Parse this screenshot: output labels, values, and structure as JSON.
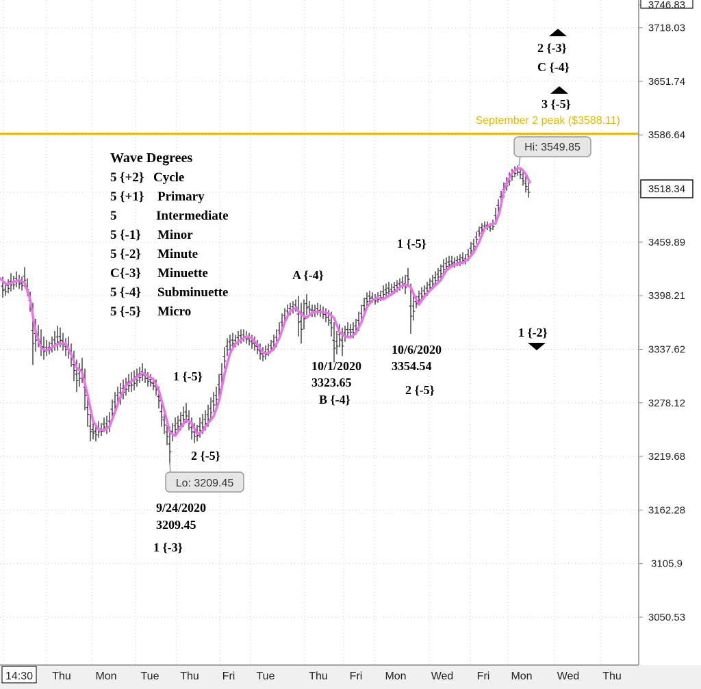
{
  "chart_data": {
    "type": "line",
    "title": "",
    "ylabel": "",
    "ylim": [
      3020,
      3747
    ],
    "grid": true,
    "y_ticks": [
      "3746.83",
      "3718.03",
      "3651.74",
      "3586.64",
      "3518.34",
      "3459.89",
      "3398.21",
      "3337.62",
      "3278.12",
      "3219.68",
      "3162.28",
      "3105.9",
      "3050.53"
    ],
    "current_price": "3518.34",
    "x_labels": [
      "14:30",
      "Thu",
      "Mon",
      "Tue",
      "Thu",
      "Fri",
      "Tue",
      "Thu",
      "Fri",
      "Mon",
      "Wed",
      "Fri",
      "Mon",
      "Wed",
      "Thu"
    ],
    "moving_average": [
      [
        0,
        3418
      ],
      [
        10,
        3411
      ],
      [
        20,
        3414
      ],
      [
        28,
        3416
      ],
      [
        36,
        3413
      ],
      [
        44,
        3394
      ],
      [
        52,
        3358
      ],
      [
        60,
        3339
      ],
      [
        68,
        3336
      ],
      [
        76,
        3340
      ],
      [
        86,
        3344
      ],
      [
        96,
        3344
      ],
      [
        104,
        3332
      ],
      [
        112,
        3317
      ],
      [
        120,
        3312
      ],
      [
        128,
        3287
      ],
      [
        136,
        3258
      ],
      [
        144,
        3249
      ],
      [
        152,
        3248
      ],
      [
        160,
        3252
      ],
      [
        168,
        3268
      ],
      [
        176,
        3285
      ],
      [
        184,
        3297
      ],
      [
        192,
        3302
      ],
      [
        200,
        3306
      ],
      [
        208,
        3311
      ],
      [
        216,
        3308
      ],
      [
        224,
        3304
      ],
      [
        232,
        3292
      ],
      [
        240,
        3270
      ],
      [
        248,
        3246
      ],
      [
        256,
        3242
      ],
      [
        264,
        3251
      ],
      [
        272,
        3259
      ],
      [
        280,
        3256
      ],
      [
        288,
        3244
      ],
      [
        296,
        3247
      ],
      [
        304,
        3256
      ],
      [
        312,
        3263
      ],
      [
        320,
        3280
      ],
      [
        328,
        3310
      ],
      [
        336,
        3333
      ],
      [
        344,
        3344
      ],
      [
        352,
        3348
      ],
      [
        360,
        3352
      ],
      [
        368,
        3350
      ],
      [
        376,
        3343
      ],
      [
        384,
        3334
      ],
      [
        392,
        3333
      ],
      [
        400,
        3338
      ],
      [
        408,
        3350
      ],
      [
        416,
        3368
      ],
      [
        424,
        3381
      ],
      [
        432,
        3384
      ],
      [
        440,
        3377
      ],
      [
        448,
        3373
      ],
      [
        456,
        3379
      ],
      [
        464,
        3380
      ],
      [
        472,
        3380
      ],
      [
        480,
        3378
      ],
      [
        488,
        3373
      ],
      [
        496,
        3357
      ],
      [
        504,
        3352
      ],
      [
        512,
        3351
      ],
      [
        520,
        3356
      ],
      [
        528,
        3368
      ],
      [
        536,
        3385
      ],
      [
        544,
        3393
      ],
      [
        552,
        3396
      ],
      [
        560,
        3394
      ],
      [
        568,
        3398
      ],
      [
        576,
        3402
      ],
      [
        584,
        3408
      ],
      [
        592,
        3411
      ],
      [
        600,
        3408
      ],
      [
        606,
        3397
      ],
      [
        612,
        3388
      ],
      [
        620,
        3397
      ],
      [
        628,
        3404
      ],
      [
        636,
        3410
      ],
      [
        644,
        3416
      ],
      [
        652,
        3427
      ],
      [
        660,
        3432
      ],
      [
        668,
        3435
      ],
      [
        676,
        3436
      ],
      [
        684,
        3440
      ],
      [
        692,
        3448
      ],
      [
        700,
        3460
      ],
      [
        708,
        3476
      ],
      [
        716,
        3480
      ],
      [
        724,
        3482
      ],
      [
        730,
        3496
      ],
      [
        736,
        3520
      ],
      [
        742,
        3532
      ],
      [
        748,
        3541
      ],
      [
        756,
        3547
      ],
      [
        762,
        3546
      ],
      [
        768,
        3540
      ],
      [
        774,
        3530
      ]
    ],
    "price_bars": [
      [
        4,
        3420,
        3396
      ],
      [
        8,
        3412,
        3398
      ],
      [
        12,
        3417,
        3401
      ],
      [
        16,
        3424,
        3403
      ],
      [
        20,
        3421,
        3405
      ],
      [
        24,
        3426,
        3408
      ],
      [
        28,
        3422,
        3406
      ],
      [
        32,
        3420,
        3404
      ],
      [
        36,
        3431,
        3408
      ],
      [
        40,
        3418,
        3398
      ],
      [
        44,
        3403,
        3380
      ],
      [
        48,
        3390,
        3320
      ],
      [
        52,
        3372,
        3335
      ],
      [
        56,
        3365,
        3340
      ],
      [
        60,
        3360,
        3330
      ],
      [
        64,
        3352,
        3326
      ],
      [
        68,
        3348,
        3330
      ],
      [
        72,
        3346,
        3332
      ],
      [
        76,
        3352,
        3334
      ],
      [
        80,
        3358,
        3336
      ],
      [
        84,
        3364,
        3336
      ],
      [
        88,
        3362,
        3340
      ],
      [
        92,
        3356,
        3336
      ],
      [
        96,
        3350,
        3330
      ],
      [
        100,
        3352,
        3327
      ],
      [
        104,
        3344,
        3318
      ],
      [
        108,
        3336,
        3302
      ],
      [
        112,
        3326,
        3290
      ],
      [
        116,
        3322,
        3296
      ],
      [
        120,
        3328,
        3300
      ],
      [
        124,
        3316,
        3270
      ],
      [
        128,
        3290,
        3252
      ],
      [
        132,
        3266,
        3236
      ],
      [
        136,
        3258,
        3238
      ],
      [
        140,
        3256,
        3236
      ],
      [
        144,
        3258,
        3240
      ],
      [
        148,
        3256,
        3242
      ],
      [
        152,
        3262,
        3246
      ],
      [
        156,
        3264,
        3244
      ],
      [
        160,
        3268,
        3246
      ],
      [
        164,
        3282,
        3258
      ],
      [
        168,
        3290,
        3266
      ],
      [
        172,
        3296,
        3274
      ],
      [
        176,
        3300,
        3276
      ],
      [
        180,
        3304,
        3282
      ],
      [
        184,
        3306,
        3286
      ],
      [
        188,
        3310,
        3290
      ],
      [
        192,
        3312,
        3290
      ],
      [
        196,
        3314,
        3292
      ],
      [
        200,
        3316,
        3296
      ],
      [
        204,
        3318,
        3300
      ],
      [
        208,
        3322,
        3302
      ],
      [
        212,
        3316,
        3300
      ],
      [
        216,
        3312,
        3296
      ],
      [
        220,
        3310,
        3296
      ],
      [
        224,
        3306,
        3292
      ],
      [
        228,
        3304,
        3286
      ],
      [
        232,
        3296,
        3272
      ],
      [
        236,
        3282,
        3252
      ],
      [
        240,
        3272,
        3244
      ],
      [
        244,
        3258,
        3232
      ],
      [
        248,
        3252,
        3210
      ],
      [
        252,
        3256,
        3236
      ],
      [
        256,
        3262,
        3242
      ],
      [
        260,
        3264,
        3246
      ],
      [
        264,
        3268,
        3248
      ],
      [
        268,
        3274,
        3252
      ],
      [
        272,
        3278,
        3256
      ],
      [
        276,
        3270,
        3248
      ],
      [
        280,
        3262,
        3238
      ],
      [
        284,
        3256,
        3234
      ],
      [
        288,
        3254,
        3236
      ],
      [
        292,
        3262,
        3240
      ],
      [
        296,
        3266,
        3244
      ],
      [
        300,
        3270,
        3248
      ],
      [
        304,
        3276,
        3252
      ],
      [
        308,
        3284,
        3258
      ],
      [
        312,
        3290,
        3268
      ],
      [
        316,
        3296,
        3274
      ],
      [
        320,
        3310,
        3284
      ],
      [
        324,
        3322,
        3294
      ],
      [
        328,
        3340,
        3316
      ],
      [
        332,
        3350,
        3330
      ],
      [
        336,
        3354,
        3336
      ],
      [
        340,
        3356,
        3338
      ],
      [
        344,
        3354,
        3340
      ],
      [
        348,
        3358,
        3342
      ],
      [
        352,
        3360,
        3344
      ],
      [
        356,
        3360,
        3346
      ],
      [
        360,
        3358,
        3344
      ],
      [
        364,
        3356,
        3342
      ],
      [
        368,
        3354,
        3338
      ],
      [
        372,
        3352,
        3336
      ],
      [
        376,
        3348,
        3332
      ],
      [
        380,
        3344,
        3326
      ],
      [
        384,
        3340,
        3324
      ],
      [
        388,
        3342,
        3326
      ],
      [
        392,
        3344,
        3330
      ],
      [
        396,
        3348,
        3334
      ],
      [
        400,
        3354,
        3336
      ],
      [
        404,
        3360,
        3340
      ],
      [
        408,
        3368,
        3348
      ],
      [
        412,
        3378,
        3356
      ],
      [
        416,
        3384,
        3366
      ],
      [
        420,
        3388,
        3372
      ],
      [
        424,
        3390,
        3376
      ],
      [
        428,
        3392,
        3378
      ],
      [
        432,
        3394,
        3380
      ],
      [
        436,
        3398,
        3352
      ],
      [
        440,
        3390,
        3344
      ],
      [
        444,
        3394,
        3360
      ],
      [
        448,
        3400,
        3376
      ],
      [
        452,
        3392,
        3378
      ],
      [
        456,
        3388,
        3374
      ],
      [
        460,
        3388,
        3374
      ],
      [
        464,
        3390,
        3376
      ],
      [
        468,
        3388,
        3374
      ],
      [
        472,
        3386,
        3372
      ],
      [
        476,
        3384,
        3368
      ],
      [
        480,
        3382,
        3364
      ],
      [
        484,
        3380,
        3352
      ],
      [
        488,
        3368,
        3323
      ],
      [
        492,
        3358,
        3332
      ],
      [
        496,
        3366,
        3340
      ],
      [
        500,
        3362,
        3330
      ],
      [
        504,
        3364,
        3346
      ],
      [
        508,
        3368,
        3350
      ],
      [
        512,
        3366,
        3352
      ],
      [
        516,
        3368,
        3350
      ],
      [
        520,
        3372,
        3354
      ],
      [
        524,
        3380,
        3358
      ],
      [
        528,
        3388,
        3366
      ],
      [
        532,
        3396,
        3376
      ],
      [
        536,
        3402,
        3386
      ],
      [
        540,
        3404,
        3390
      ],
      [
        544,
        3402,
        3390
      ],
      [
        548,
        3400,
        3388
      ],
      [
        552,
        3402,
        3390
      ],
      [
        556,
        3404,
        3392
      ],
      [
        560,
        3410,
        3394
      ],
      [
        564,
        3412,
        3396
      ],
      [
        568,
        3414,
        3398
      ],
      [
        572,
        3412,
        3398
      ],
      [
        576,
        3414,
        3400
      ],
      [
        580,
        3416,
        3402
      ],
      [
        584,
        3418,
        3404
      ],
      [
        588,
        3420,
        3406
      ],
      [
        592,
        3422,
        3400
      ],
      [
        596,
        3430,
        3410
      ],
      [
        600,
        3412,
        3355
      ],
      [
        604,
        3400,
        3370
      ],
      [
        608,
        3398,
        3384
      ],
      [
        612,
        3404,
        3388
      ],
      [
        616,
        3408,
        3392
      ],
      [
        620,
        3410,
        3396
      ],
      [
        624,
        3414,
        3398
      ],
      [
        628,
        3418,
        3402
      ],
      [
        632,
        3422,
        3406
      ],
      [
        636,
        3426,
        3410
      ],
      [
        640,
        3430,
        3414
      ],
      [
        644,
        3434,
        3418
      ],
      [
        648,
        3440,
        3422
      ],
      [
        652,
        3442,
        3426
      ],
      [
        656,
        3444,
        3428
      ],
      [
        660,
        3444,
        3430
      ],
      [
        664,
        3442,
        3430
      ],
      [
        668,
        3444,
        3432
      ],
      [
        672,
        3446,
        3432
      ],
      [
        676,
        3448,
        3434
      ],
      [
        680,
        3446,
        3434
      ],
      [
        684,
        3452,
        3438
      ],
      [
        688,
        3460,
        3444
      ],
      [
        692,
        3464,
        3450
      ],
      [
        696,
        3472,
        3458
      ],
      [
        700,
        3478,
        3466
      ],
      [
        704,
        3482,
        3470
      ],
      [
        708,
        3484,
        3472
      ],
      [
        712,
        3484,
        3474
      ],
      [
        716,
        3482,
        3472
      ],
      [
        720,
        3486,
        3474
      ],
      [
        724,
        3500,
        3480
      ],
      [
        728,
        3510,
        3494
      ],
      [
        732,
        3520,
        3504
      ],
      [
        736,
        3530,
        3512
      ],
      [
        740,
        3536,
        3520
      ],
      [
        744,
        3542,
        3526
      ],
      [
        748,
        3546,
        3532
      ],
      [
        752,
        3549,
        3536
      ],
      [
        756,
        3550,
        3538
      ],
      [
        760,
        3548,
        3534
      ],
      [
        764,
        3542,
        3526
      ],
      [
        768,
        3538,
        3518
      ],
      [
        772,
        3530,
        3512
      ]
    ],
    "hline": {
      "value": 3588.11,
      "label": "September 2 peak ($3588.11)",
      "color": "#e8b800"
    },
    "ma_color": "#f06ef0",
    "bar_color": "#2a2a2a",
    "callouts": [
      {
        "id": "hi",
        "text": "Hi: 3549.85"
      },
      {
        "id": "lo",
        "text": "Lo: 3209.45"
      }
    ],
    "legend_title": "Wave Degrees",
    "legend_rows": [
      [
        "5",
        "{+2}",
        "Cycle"
      ],
      [
        "5",
        "{+1}",
        "Primary"
      ],
      [
        "5",
        "",
        "Intermediate"
      ],
      [
        "5",
        "{-1}",
        "Minor"
      ],
      [
        "5",
        "{-2}",
        "Minute"
      ],
      [
        "C",
        "{-3}",
        "Minuette"
      ],
      [
        "5",
        "{-4}",
        "Subminuette"
      ],
      [
        "5",
        "{-5}",
        "Micro"
      ]
    ],
    "annotations": {
      "a_wave": "A {-4}",
      "one_5_left": "1 {-5}",
      "two_5_left": "2 {-5}",
      "date_924": "9/24/2020",
      "val_924": "3209.45",
      "one_3": "1 {-3}",
      "date_101": "10/1/2020",
      "val_101": "3323.65",
      "b_wave": "B {-4}",
      "one_5_right": "1 {-5}",
      "date_106": "10/6/2020",
      "val_106": "3354.54",
      "two_5_right": "2 {-5}",
      "two_3": "2 {-3}",
      "c_4": "C {-4}",
      "three_5": "3 {-5}",
      "one_2": "1 {-2}"
    }
  }
}
